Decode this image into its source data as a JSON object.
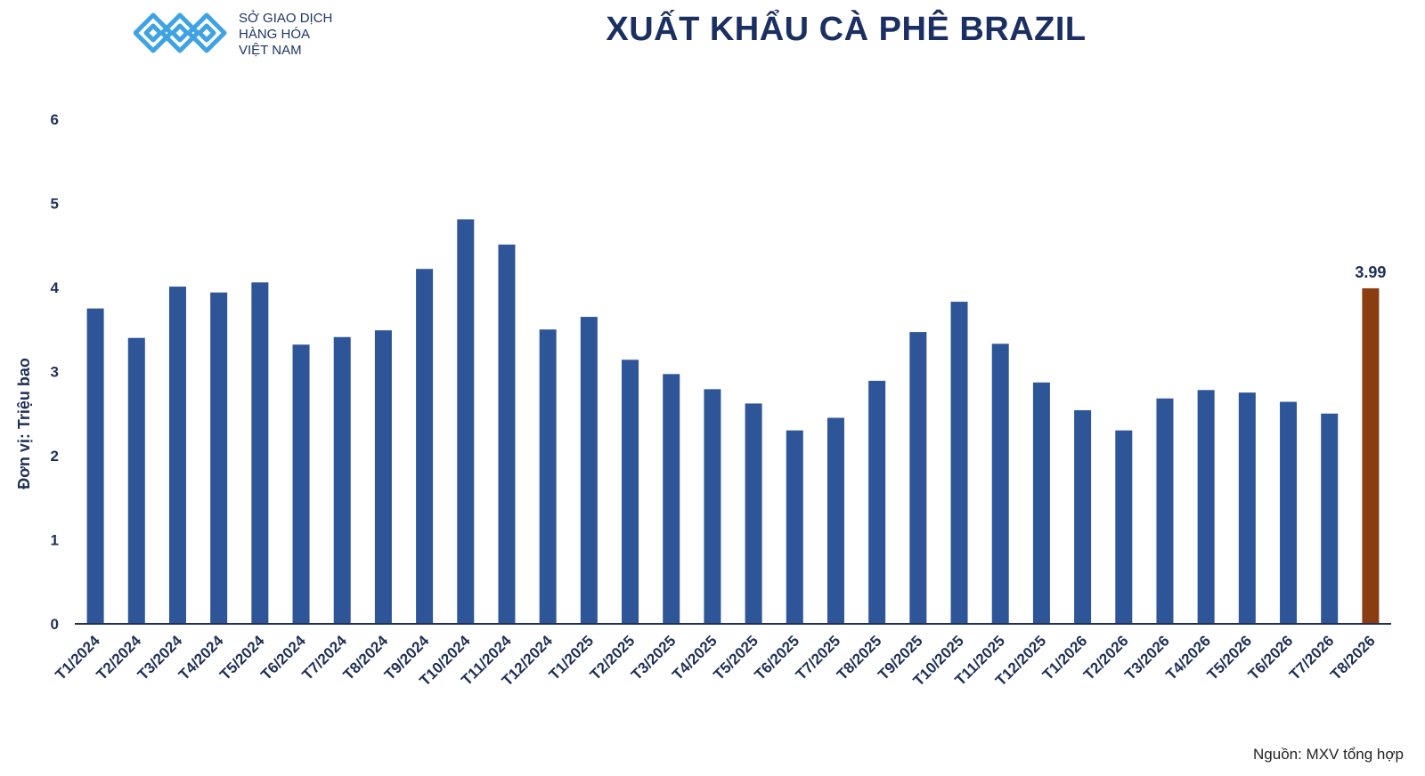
{
  "logo": {
    "name": "Sở Giao Dịch Hàng Hóa Việt Nam logo",
    "line1": "SỞ GIAO DỊCH",
    "line2": "HÀNG HÓA",
    "line3": "VIỆT NAM"
  },
  "source": "Nguồn: MXV tổng hợp",
  "colors": {
    "bar": "#2e5597",
    "highlight": "#8b3d12",
    "axis": "#1f2f55",
    "logo": "#3fa3e3"
  },
  "chart_data": {
    "type": "bar",
    "title": "XUẤT KHẨU CÀ PHÊ BRAZIL",
    "xlabel": "",
    "ylabel": "Đơn vị: Triệu bao",
    "ylim": [
      0,
      6
    ],
    "yticks": [
      0,
      1,
      2,
      3,
      4,
      5,
      6
    ],
    "grid": false,
    "categories": [
      "T1/2024",
      "T2/2024",
      "T3/2024",
      "T4/2024",
      "T5/2024",
      "T6/2024",
      "T7/2024",
      "T8/2024",
      "T9/2024",
      "T10/2024",
      "T11/2024",
      "T12/2024",
      "T1/2025",
      "T2/2025",
      "T3/2025",
      "T4/2025",
      "T5/2025",
      "T6/2025",
      "T7/2025",
      "T8/2025",
      "T9/2025",
      "T10/2025",
      "T11/2025",
      "T12/2025",
      "T1/2026",
      "T2/2026",
      "T3/2026",
      "T4/2026",
      "T5/2026",
      "T6/2026",
      "T7/2026",
      "T8/2026"
    ],
    "values": [
      3.75,
      3.4,
      4.01,
      3.94,
      4.06,
      3.32,
      3.41,
      3.49,
      4.22,
      4.81,
      4.51,
      3.5,
      3.65,
      3.14,
      2.97,
      2.79,
      2.62,
      2.3,
      2.45,
      2.89,
      3.47,
      3.83,
      3.33,
      2.87,
      2.54,
      2.3,
      2.68,
      2.78,
      2.75,
      2.64,
      2.5,
      3.99
    ],
    "highlight_index": 31,
    "data_labels": [
      {
        "index": 31,
        "text": "3.99"
      }
    ]
  }
}
